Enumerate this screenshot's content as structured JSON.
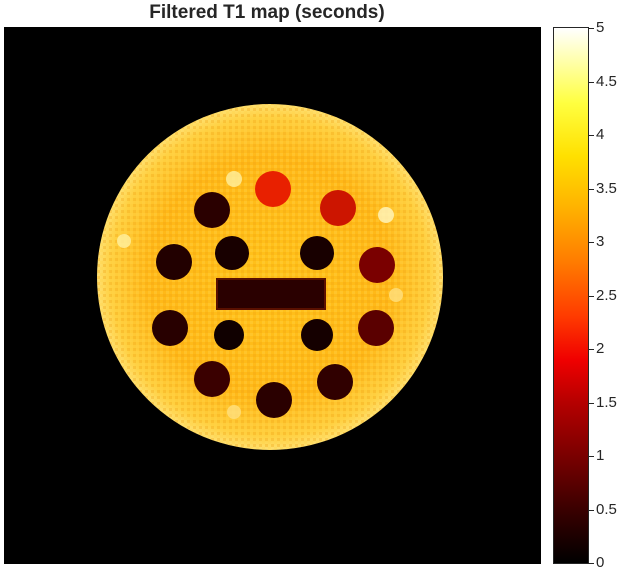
{
  "figure": {
    "title": "Filtered T1 map (seconds)"
  },
  "colorbar": {
    "colormap": "hot",
    "min": 0,
    "max": 5,
    "ticks": [
      "0",
      "0.5",
      "1",
      "1.5",
      "2",
      "2.5",
      "3",
      "3.5",
      "4",
      "4.5",
      "5"
    ]
  },
  "colors": {
    "background": "#000000",
    "phantom_body": "#ffc21a",
    "vial_dark": "#2a0000",
    "vial_red": "#e82000",
    "vial_darkred": "#7a0000"
  }
}
